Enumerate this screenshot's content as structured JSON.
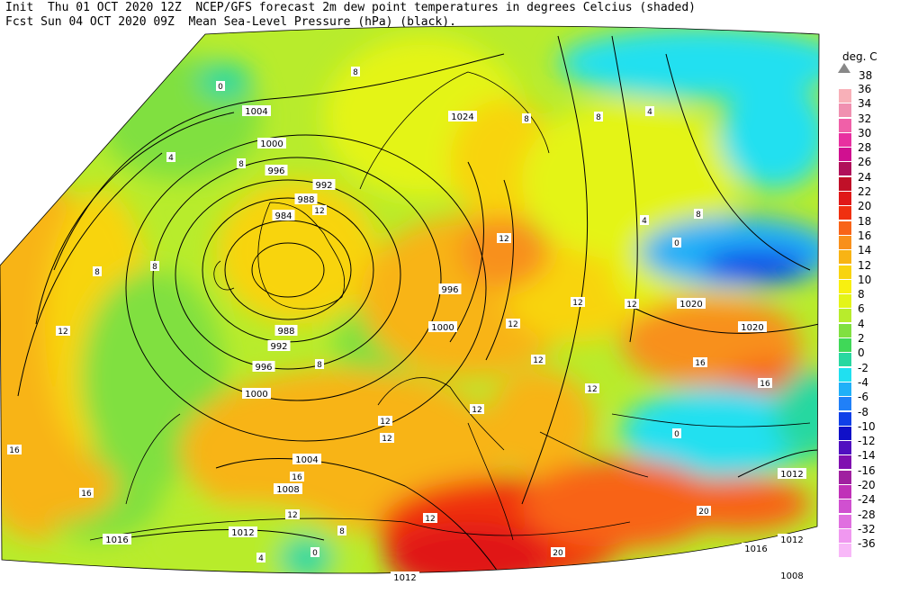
{
  "header": {
    "line1": "Init  Thu 01 OCT 2020 12Z  NCEP/GFS forecast 2m dew point temperatures in degrees Celcius (shaded)",
    "line2": "Fcst Sun 04 OCT 2020 09Z  Mean Sea-Level Pressure (hPa) (black)."
  },
  "legend": {
    "unit": "deg. C",
    "top_label": "38",
    "items": [
      {
        "label": "36",
        "color": "#f8b0b8"
      },
      {
        "label": "34",
        "color": "#f090b0"
      },
      {
        "label": "32",
        "color": "#f060a8"
      },
      {
        "label": "30",
        "color": "#e830a0"
      },
      {
        "label": "28",
        "color": "#d01090"
      },
      {
        "label": "26",
        "color": "#b0105a"
      },
      {
        "label": "24",
        "color": "#c01028"
      },
      {
        "label": "22",
        "color": "#e01818"
      },
      {
        "label": "20",
        "color": "#f03010"
      },
      {
        "label": "18",
        "color": "#f86418"
      },
      {
        "label": "16",
        "color": "#f8901c"
      },
      {
        "label": "14",
        "color": "#f8b414"
      },
      {
        "label": "12",
        "color": "#f8d410"
      },
      {
        "label": "10",
        "color": "#f8f010"
      },
      {
        "label": "8",
        "color": "#e4f418"
      },
      {
        "label": "6",
        "color": "#b8ec2c"
      },
      {
        "label": "4",
        "color": "#80e040"
      },
      {
        "label": "2",
        "color": "#40d858"
      },
      {
        "label": "0",
        "color": "#28d8a0"
      },
      {
        "label": "-2",
        "color": "#20e0f0"
      },
      {
        "label": "-4",
        "color": "#20b0f8"
      },
      {
        "label": "-6",
        "color": "#2080f8"
      },
      {
        "label": "-8",
        "color": "#1040e8"
      },
      {
        "label": "-10",
        "color": "#1010c8"
      },
      {
        "label": "-12",
        "color": "#5010c0"
      },
      {
        "label": "-14",
        "color": "#8010b0"
      },
      {
        "label": "-16",
        "color": "#a020a0"
      },
      {
        "label": "-20",
        "color": "#c030b8"
      },
      {
        "label": "-24",
        "color": "#d050d0"
      },
      {
        "label": "-28",
        "color": "#e070e0"
      },
      {
        "label": "-32",
        "color": "#f098f0"
      },
      {
        "label": "-36",
        "color": "#f8b8f8"
      }
    ]
  },
  "isobar_labels": [
    "1004",
    "1000",
    "996",
    "992",
    "988",
    "984",
    "988",
    "992",
    "996",
    "1000",
    "1004",
    "1008",
    "1012",
    "1016",
    "1012",
    "1024",
    "996",
    "1000",
    "1020",
    "1020",
    "1012",
    "1012",
    "1016",
    "1008"
  ],
  "dewpoint_labels": [
    "0",
    "4",
    "8",
    "8",
    "8",
    "8",
    "12",
    "12",
    "8",
    "12",
    "12",
    "12",
    "12",
    "4",
    "4",
    "0",
    "12",
    "12",
    "16",
    "16",
    "12",
    "12",
    "16",
    "20",
    "20",
    "12",
    "0",
    "8",
    "4",
    "16",
    "12",
    "16",
    "0",
    "8",
    "12",
    "8",
    "8"
  ]
}
